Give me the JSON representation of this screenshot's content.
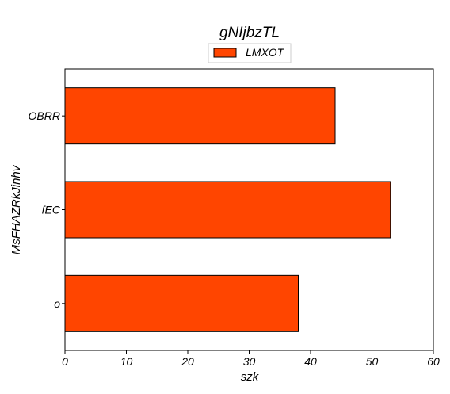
{
  "chart_data": {
    "type": "bar",
    "orientation": "horizontal",
    "title": "gNIjbzTL",
    "xlabel": "szk",
    "ylabel": "MsFHAZRkJinhv",
    "categories": [
      "OBRR",
      "fEC",
      "o"
    ],
    "series": [
      {
        "name": "LMXOT",
        "values": [
          44,
          53,
          38
        ],
        "color": "#ff4500"
      }
    ],
    "xlim": [
      0,
      60
    ],
    "xticks": [
      0,
      10,
      20,
      30,
      40,
      50,
      60
    ],
    "grid": false,
    "legend_position": "top-center"
  }
}
